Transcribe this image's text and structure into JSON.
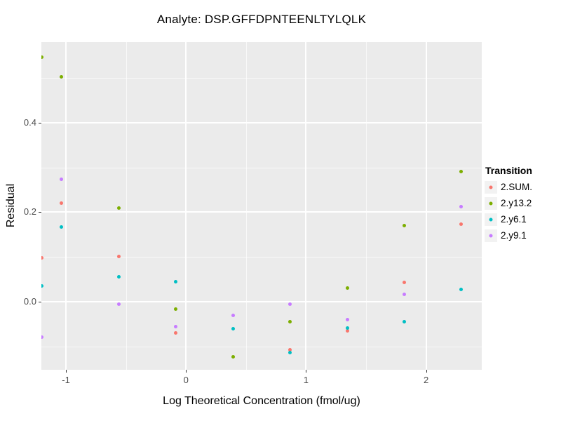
{
  "title": "Analyte: DSP.GFFDPNTEENLTYLQLK",
  "chart_data": {
    "type": "scatter",
    "title": "Analyte: DSP.GFFDPNTEENLTYLQLK",
    "xlabel": "Log Theoretical Concentration (fmol/ug)",
    "ylabel": "Residual",
    "xlim": [
      -1.205,
      2.464
    ],
    "ylim": [
      -0.152,
      0.58
    ],
    "x_major_ticks": [
      -1,
      0,
      1,
      2
    ],
    "x_tick_labels": [
      "-1",
      "0",
      "1",
      "2"
    ],
    "x_minor_ticks": [
      -0.5,
      0.5,
      1.5
    ],
    "y_major_ticks": [
      0.0,
      0.2,
      0.4
    ],
    "y_tick_labels": [
      "0.0",
      "0.2",
      "0.4"
    ],
    "y_minor_ticks": [
      -0.1,
      0.1,
      0.3,
      0.5
    ],
    "grid": true,
    "legend_position": "right",
    "legend_title": "Transition",
    "panel_bg": "#EBEBEB",
    "grid_major_color": "#FFFFFF",
    "grid_minor_color": "rgba(255,255,255,0.65)",
    "series": [
      {
        "name": "2.SUM.",
        "color": "#F8766D",
        "points": [
          [
            -1.2,
            0.098
          ],
          [
            -1.04,
            0.22
          ],
          [
            -0.56,
            0.101
          ],
          [
            -0.085,
            -0.07
          ],
          [
            0.866,
            -0.107
          ],
          [
            1.343,
            -0.065
          ],
          [
            1.82,
            0.043
          ],
          [
            2.294,
            0.174
          ]
        ]
      },
      {
        "name": "2.y13.2",
        "color": "#7CAE00",
        "points": [
          [
            -1.2,
            0.547
          ],
          [
            -1.04,
            0.502
          ],
          [
            -0.56,
            0.209
          ],
          [
            -0.085,
            -0.016
          ],
          [
            0.39,
            -0.123
          ],
          [
            0.866,
            -0.045
          ],
          [
            1.343,
            0.03
          ],
          [
            1.82,
            0.17
          ],
          [
            2.294,
            0.291
          ]
        ]
      },
      {
        "name": "2.y6.1",
        "color": "#00BFC4",
        "points": [
          [
            -1.2,
            0.036
          ],
          [
            -1.04,
            0.167
          ],
          [
            -0.56,
            0.055
          ],
          [
            -0.085,
            0.045
          ],
          [
            0.39,
            -0.06
          ],
          [
            0.866,
            -0.114
          ],
          [
            1.343,
            -0.059
          ],
          [
            1.82,
            -0.044
          ],
          [
            2.294,
            0.028
          ]
        ]
      },
      {
        "name": "2.y9.1",
        "color": "#C77CFF",
        "points": [
          [
            -1.2,
            -0.079
          ],
          [
            -1.04,
            0.273
          ],
          [
            -0.56,
            -0.006
          ],
          [
            -0.085,
            -0.055
          ],
          [
            0.39,
            -0.03
          ],
          [
            0.866,
            -0.005
          ],
          [
            1.343,
            -0.04
          ],
          [
            1.82,
            0.016
          ],
          [
            2.294,
            0.212
          ]
        ]
      }
    ]
  }
}
